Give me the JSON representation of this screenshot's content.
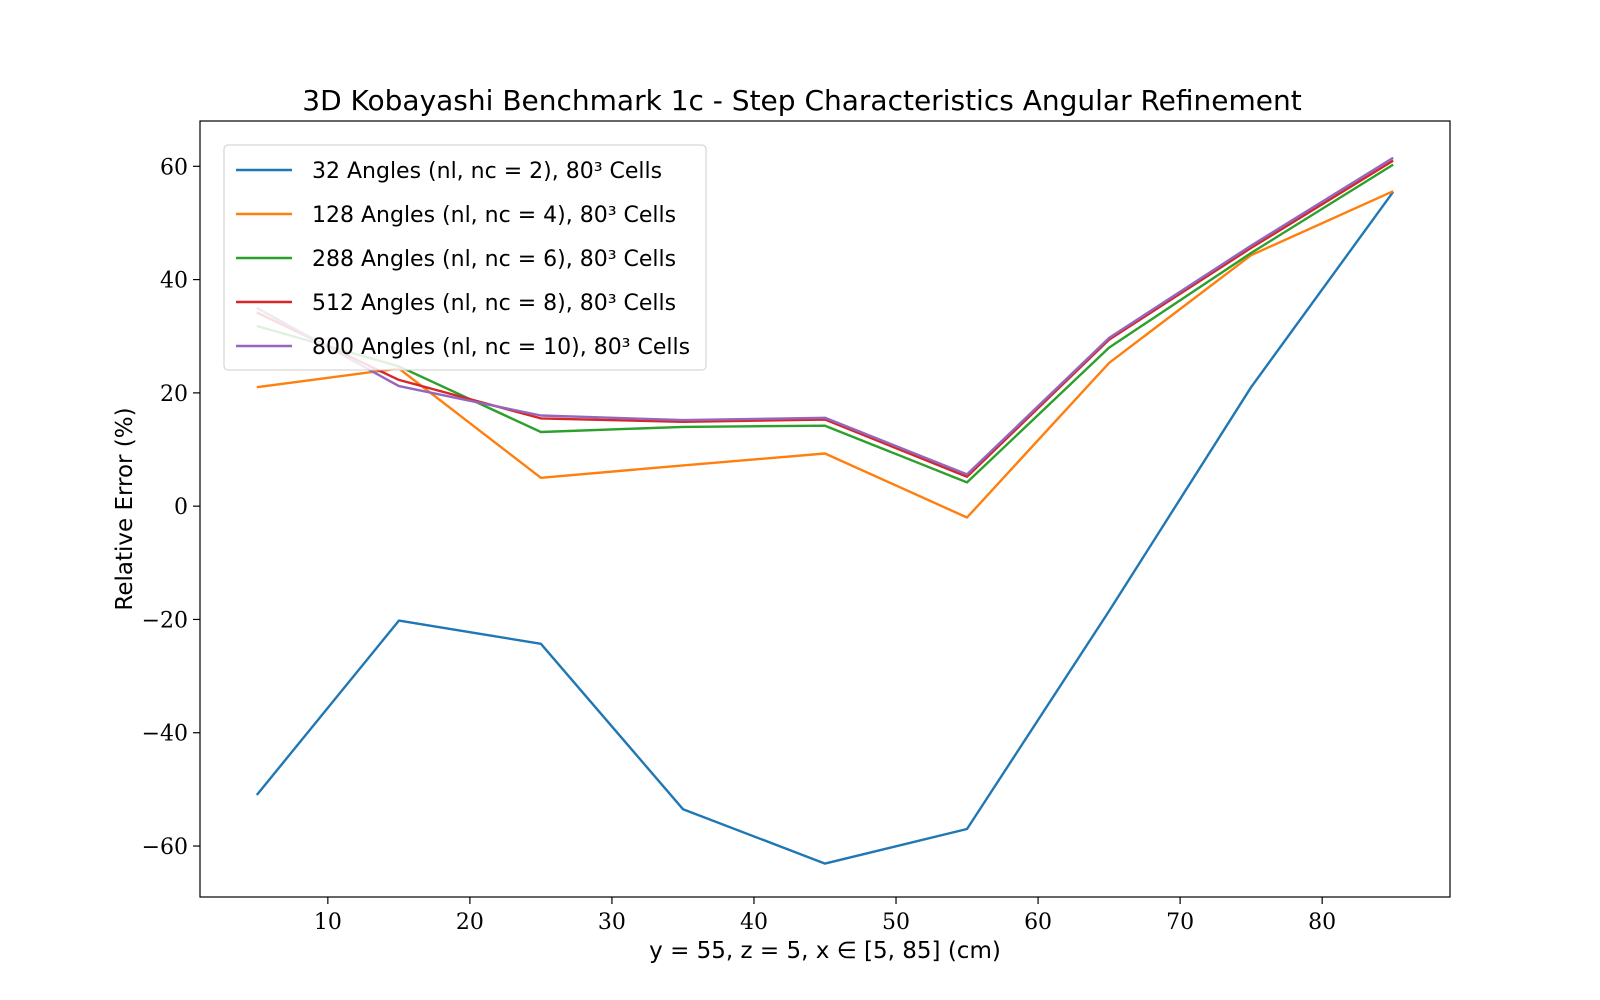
{
  "chart_data": {
    "type": "line",
    "title": "3D Kobayashi Benchmark 1c - Step Characteristics Angular Refinement",
    "xlabel": "y = 55, z = 5, x ∈ [5, 85] (cm)",
    "ylabel": "Relative Error (%)",
    "xlim": [
      1,
      89
    ],
    "ylim": [
      -69,
      68
    ],
    "x_ticks": [
      10,
      20,
      30,
      40,
      50,
      60,
      70,
      80
    ],
    "y_ticks": [
      -60,
      -40,
      -20,
      0,
      20,
      40,
      60
    ],
    "grid": false,
    "legend_position": "top-left",
    "x": [
      5,
      15,
      25,
      35,
      45,
      55,
      65,
      75,
      85
    ],
    "series": [
      {
        "name": "32 Angles (nl, nc = 2), 80³ Cells",
        "color": "#1f77b4",
        "values": [
          -51,
          -20.2,
          -24.3,
          -53.5,
          -63.1,
          -57.0,
          -18.5,
          21,
          55.5
        ]
      },
      {
        "name": "128 Angles (nl, nc = 4), 80³ Cells",
        "color": "#ff7f0e",
        "values": [
          21,
          24.3,
          5.0,
          7.2,
          9.3,
          -2.0,
          25.3,
          44.3,
          55.6
        ]
      },
      {
        "name": "288 Angles (nl, nc = 6), 80³ Cells",
        "color": "#2ca02c",
        "values": [
          31.8,
          24.7,
          13.1,
          14,
          14.2,
          4.2,
          28.0,
          44.7,
          60.3
        ]
      },
      {
        "name": "512 Angles (nl, nc = 8), 80³ Cells",
        "color": "#d62728",
        "values": [
          34.2,
          22.3,
          15.5,
          14.9,
          15.3,
          5.2,
          29.4,
          45.6,
          61.0
        ]
      },
      {
        "name": "800 Angles (nl, nc = 10), 80³ Cells",
        "color": "#9467bd",
        "values": [
          35.0,
          21.2,
          16.0,
          15.2,
          15.6,
          5.6,
          29.7,
          46.0,
          61.5
        ]
      }
    ]
  }
}
